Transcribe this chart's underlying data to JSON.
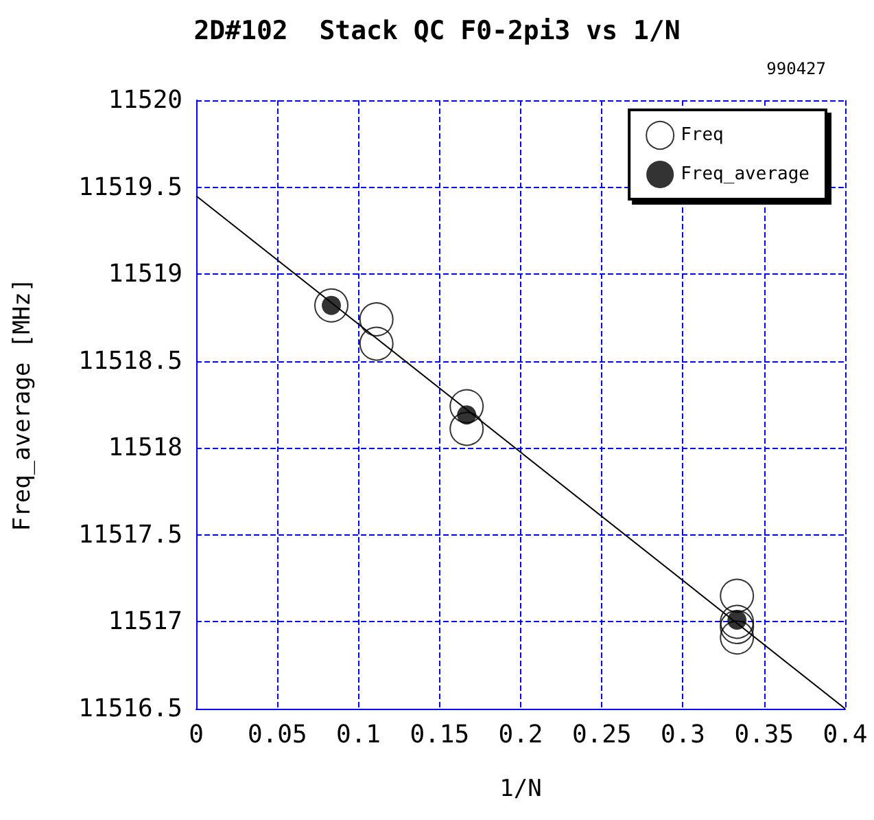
{
  "chart_data": {
    "type": "scatter",
    "title": "2D#102  Stack QC F0-2pi3 vs 1/N",
    "xlabel": "1/N",
    "ylabel": "Freq_average [MHz]",
    "annotations": [
      "990427"
    ],
    "xlim": [
      0,
      0.4
    ],
    "xticks": [
      0,
      0.05,
      0.1,
      0.15,
      0.2,
      0.25,
      0.3,
      0.35,
      0.4
    ],
    "ylim": [
      11516.5,
      11520
    ],
    "yticks": [
      11516.5,
      11517,
      11517.5,
      11518,
      11518.5,
      11519,
      11519.5,
      11520
    ],
    "grid": true,
    "legend": "top right",
    "series": [
      {
        "name": "Freq",
        "color": "#000000",
        "marker": "circle",
        "x": [
          0.0833,
          0.1111,
          0.1111,
          0.1667,
          0.1667,
          0.3333,
          0.3333,
          0.3333,
          0.3333
        ],
        "values": [
          11518.82,
          11518.74,
          11518.6,
          11518.24,
          11518.11,
          11517.15,
          11517.0,
          11516.97,
          11516.91
        ]
      },
      {
        "name": "Freq_average",
        "color": "#000000",
        "marker": "circle",
        "x": [
          0.0833,
          0.1667,
          0.3333
        ],
        "values": [
          11518.82,
          11518.19,
          11517.01
        ]
      },
      {
        "type": "line",
        "color": "#000000",
        "marker": "none",
        "x": [
          0,
          0.4
        ],
        "values": [
          11519.45,
          11516.5
        ]
      }
    ]
  }
}
